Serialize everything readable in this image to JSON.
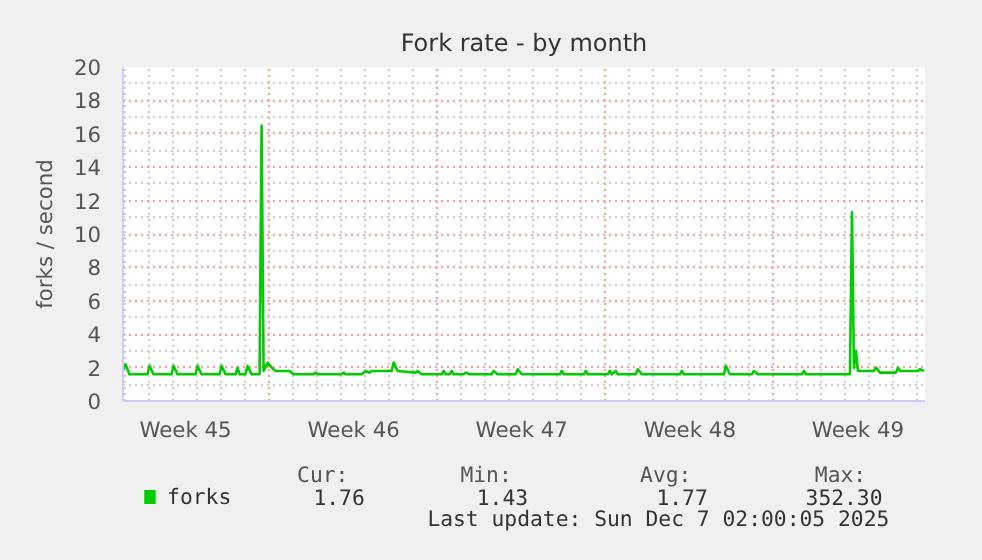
{
  "chart_data": {
    "type": "line",
    "title": "Fork rate - by month",
    "ylabel": "forks / second",
    "xlim": [
      "2025-11-03T21:30",
      "2025-12-07T07:00"
    ],
    "ylim": [
      0,
      20
    ],
    "xticks": [
      {
        "value": "2025-11-06T12:00",
        "label": "Week 45"
      },
      {
        "value": "2025-11-10",
        "label": null
      },
      {
        "value": "2025-11-13T12:00",
        "label": "Week 46"
      },
      {
        "value": "2025-11-17",
        "label": null
      },
      {
        "value": "2025-11-20T12:00",
        "label": "Week 47"
      },
      {
        "value": "2025-11-24",
        "label": null
      },
      {
        "value": "2025-11-27T12:00",
        "label": "Week 48"
      },
      {
        "value": "2025-12-01",
        "label": null
      },
      {
        "value": "2025-12-04T12:00",
        "label": "Week 49"
      }
    ],
    "yticks": [
      0,
      2,
      4,
      6,
      8,
      10,
      12,
      14,
      16,
      18,
      20
    ],
    "grid": true,
    "legend": "bottom left",
    "series": [
      {
        "name": "forks",
        "color": "#00cc00",
        "x": [
          "2025-11-03T22:00",
          "2025-11-04T00:00",
          "2025-11-04T04:00",
          "2025-11-04T22:00",
          "2025-11-05T00:00",
          "2025-11-05T04:00",
          "2025-11-05T22:00",
          "2025-11-06T00:00",
          "2025-11-06T04:00",
          "2025-11-06T22:00",
          "2025-11-07T00:00",
          "2025-11-07T04:00",
          "2025-11-07T22:00",
          "2025-11-08T00:00",
          "2025-11-08T04:00",
          "2025-11-08T14:00",
          "2025-11-08T16:00",
          "2025-11-08T18:00",
          "2025-11-09T00:00",
          "2025-11-09T02:00",
          "2025-11-09T06:00",
          "2025-11-09T14:00",
          "2025-11-09T16:00",
          "2025-11-09T18:00",
          "2025-11-09T22:00",
          "2025-11-10T02:00",
          "2025-11-10T06:00",
          "2025-11-10T20:00",
          "2025-11-11T00:00",
          "2025-11-11T20:00",
          "2025-11-11T22:00",
          "2025-11-12T00:00",
          "2025-11-13T00:00",
          "2025-11-13T02:00",
          "2025-11-13T04:00",
          "2025-11-13T20:00",
          "2025-11-14T00:00",
          "2025-11-14T04:00",
          "2025-11-14T06:00",
          "2025-11-15T02:00",
          "2025-11-15T04:00",
          "2025-11-15T08:00",
          "2025-11-16T02:00",
          "2025-11-16T04:00",
          "2025-11-16T08:00",
          "2025-11-17T04:00",
          "2025-11-17T06:00",
          "2025-11-17T08:00",
          "2025-11-17T12:00",
          "2025-11-17T14:00",
          "2025-11-17T16:00",
          "2025-11-18T02:00",
          "2025-11-18T04:00",
          "2025-11-18T08:00",
          "2025-11-19T06:00",
          "2025-11-19T08:00",
          "2025-11-19T12:00",
          "2025-11-20T06:00",
          "2025-11-20T08:00",
          "2025-11-20T12:00",
          "2025-11-22T02:00",
          "2025-11-22T04:00",
          "2025-11-22T06:00",
          "2025-11-23T02:00",
          "2025-11-23T04:00",
          "2025-11-23T06:00",
          "2025-11-24T02:00",
          "2025-11-24T04:00",
          "2025-11-24T06:00",
          "2025-11-24T10:00",
          "2025-11-24T12:00",
          "2025-11-25T06:00",
          "2025-11-25T08:00",
          "2025-11-25T12:00",
          "2025-11-27T02:00",
          "2025-11-27T04:00",
          "2025-11-27T06:00",
          "2025-11-28T22:00",
          "2025-11-29T00:00",
          "2025-11-29T04:00",
          "2025-11-30T02:00",
          "2025-11-30T04:00",
          "2025-11-30T08:00",
          "2025-12-02T04:00",
          "2025-12-02T06:00",
          "2025-12-02T08:00",
          "2025-12-04T04:00",
          "2025-12-04T06:00",
          "2025-12-04T08:00",
          "2025-12-04T10:00",
          "2025-12-04T12:00",
          "2025-12-05T04:00",
          "2025-12-05T06:00",
          "2025-12-05T10:00",
          "2025-12-06T02:00",
          "2025-12-06T04:00",
          "2025-12-06T06:00",
          "2025-12-07T00:00",
          "2025-12-07T02:00",
          "2025-12-07T06:00"
        ],
        "values": [
          1.9,
          2.2,
          1.6,
          1.6,
          2.1,
          1.6,
          1.6,
          2.1,
          1.6,
          1.6,
          2.1,
          1.6,
          1.6,
          2.1,
          1.6,
          1.6,
          2.0,
          1.6,
          1.6,
          2.1,
          1.6,
          1.6,
          16.5,
          1.8,
          2.3,
          2.0,
          1.8,
          1.8,
          1.6,
          1.6,
          1.7,
          1.6,
          1.6,
          1.7,
          1.6,
          1.6,
          1.8,
          1.7,
          1.8,
          1.8,
          2.3,
          1.8,
          1.7,
          1.8,
          1.6,
          1.6,
          1.8,
          1.6,
          1.6,
          1.8,
          1.6,
          1.6,
          1.7,
          1.6,
          1.6,
          1.8,
          1.6,
          1.6,
          1.9,
          1.6,
          1.6,
          1.8,
          1.6,
          1.6,
          1.8,
          1.6,
          1.6,
          1.8,
          1.6,
          1.8,
          1.6,
          1.6,
          1.9,
          1.6,
          1.6,
          1.8,
          1.6,
          1.6,
          2.1,
          1.6,
          1.6,
          1.8,
          1.6,
          1.6,
          1.8,
          1.6,
          1.6,
          11.3,
          2.0,
          3.0,
          1.8,
          1.8,
          2.0,
          1.7,
          1.7,
          2.0,
          1.8,
          1.8,
          1.9,
          1.8
        ]
      }
    ],
    "annotations": [
      "Cur:",
      "Min:",
      "Avg:",
      "Max:",
      "1.76",
      "1.43",
      "1.77",
      "352.30",
      "Last update: Sun Dec  7 02:00:05 2025"
    ]
  }
}
